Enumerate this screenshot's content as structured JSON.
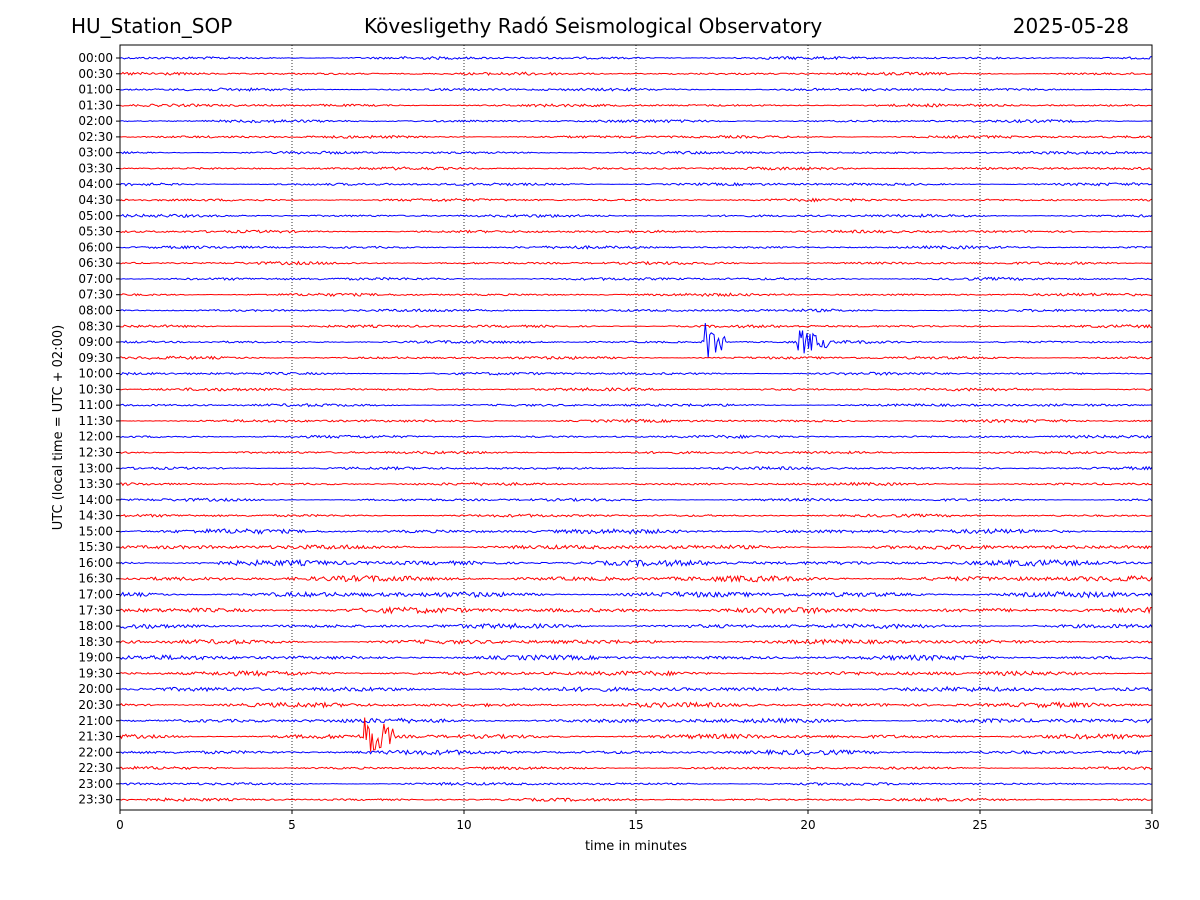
{
  "header": {
    "station": "HU_Station_SOP",
    "observatory": "Kövesligethy Radó Seismological Observatory",
    "date": "2025-05-28"
  },
  "chart_data": {
    "type": "line",
    "title": "Kövesligethy Radó Seismological Observatory",
    "xlabel": "time in minutes",
    "ylabel": "UTC (local time = UTC + 02:00)",
    "xlim": [
      0,
      30
    ],
    "x_ticks": [
      "0",
      "5",
      "10",
      "15",
      "20",
      "25",
      "30"
    ],
    "grid": "vertical dotted lines at x ticks",
    "series_colors": [
      "#0000ff",
      "#ff0000"
    ],
    "rows": [
      "00:00",
      "00:30",
      "01:00",
      "01:30",
      "02:00",
      "02:30",
      "03:00",
      "03:30",
      "04:00",
      "04:30",
      "05:00",
      "05:30",
      "06:00",
      "06:30",
      "07:00",
      "07:30",
      "08:00",
      "08:30",
      "09:00",
      "09:30",
      "10:00",
      "10:30",
      "11:00",
      "11:30",
      "12:00",
      "12:30",
      "13:00",
      "13:30",
      "14:00",
      "14:30",
      "15:00",
      "15:30",
      "16:00",
      "16:30",
      "17:00",
      "17:30",
      "18:00",
      "18:30",
      "19:00",
      "19:30",
      "20:00",
      "20:30",
      "21:00",
      "21:30",
      "22:00",
      "22:30",
      "23:00",
      "23:30"
    ],
    "events": [
      {
        "row": "09:00",
        "start_min": 16.9,
        "end_min": 17.6,
        "peak": 3.2
      },
      {
        "row": "09:00",
        "start_min": 19.7,
        "end_min": 20.6,
        "peak": 1.8
      },
      {
        "row": "21:30",
        "start_min": 7.1,
        "end_min": 8.0,
        "peak": 3.0
      }
    ]
  }
}
